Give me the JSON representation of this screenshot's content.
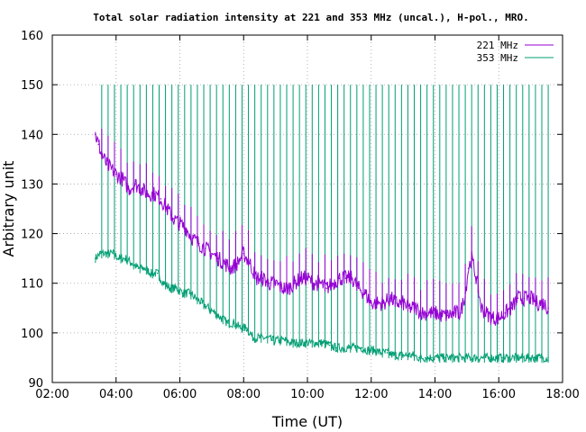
{
  "chart_data": {
    "type": "line",
    "title": "Total solar radiation intensity at 221 and 353 MHz (uncal.), H-pol., MRO.",
    "xlabel": "Time (UT)",
    "ylabel": "Arbitrary unit",
    "xlim": [
      "02:00",
      "18:00"
    ],
    "ylim": [
      90,
      160
    ],
    "x_ticks": [
      "02:00",
      "04:00",
      "06:00",
      "08:00",
      "10:00",
      "12:00",
      "14:00",
      "16:00",
      "18:00"
    ],
    "y_ticks": [
      "90",
      "100",
      "110",
      "120",
      "130",
      "140",
      "150",
      "160"
    ],
    "grid": true,
    "legend_position": "top-right",
    "x_unit": "hours UT (decimal)",
    "series": [
      {
        "name": "221 MHz",
        "color": "#9400d3",
        "x": [
          3.35,
          3.45,
          3.55,
          3.7,
          3.85,
          4.0,
          4.2,
          4.4,
          4.6,
          4.8,
          5.0,
          5.2,
          5.4,
          5.6,
          5.8,
          6.0,
          6.2,
          6.4,
          6.6,
          6.8,
          7.0,
          7.2,
          7.4,
          7.6,
          7.8,
          8.0,
          8.2,
          8.4,
          8.6,
          8.8,
          9.0,
          9.2,
          9.4,
          9.6,
          9.8,
          10.0,
          10.2,
          10.4,
          10.6,
          10.8,
          11.0,
          11.2,
          11.4,
          11.6,
          11.8,
          12.0,
          12.2,
          12.4,
          12.6,
          12.8,
          13.0,
          13.2,
          13.4,
          13.6,
          13.8,
          14.0,
          14.2,
          14.4,
          14.6,
          14.8,
          14.95,
          15.05,
          15.15,
          15.3,
          15.45,
          15.6,
          15.8,
          16.0,
          16.2,
          16.4,
          16.6,
          16.8,
          17.0,
          17.2,
          17.4,
          17.55
        ],
        "y": [
          140,
          138,
          136,
          134,
          133,
          132,
          131,
          129,
          130,
          129,
          128,
          128,
          127,
          125,
          123,
          122,
          121,
          119,
          118,
          117,
          116,
          115,
          114,
          113,
          114,
          116,
          114,
          111,
          111,
          110,
          110,
          109,
          109,
          110,
          111,
          111,
          110,
          110,
          109,
          110,
          111,
          111,
          111,
          109,
          108,
          106,
          106,
          106,
          107,
          106,
          106,
          105,
          105,
          104,
          104,
          104,
          103.5,
          103.5,
          104,
          104,
          108,
          113,
          115,
          111,
          105,
          104,
          103,
          103,
          104,
          105,
          107,
          107,
          107,
          106,
          106,
          105
        ]
      },
      {
        "name": "353 MHz",
        "color": "#009e73",
        "x": [
          3.35,
          3.5,
          3.7,
          3.9,
          4.1,
          4.3,
          4.5,
          4.7,
          4.9,
          5.1,
          5.3,
          5.5,
          5.7,
          5.9,
          6.1,
          6.3,
          6.5,
          6.7,
          6.9,
          7.1,
          7.3,
          7.5,
          7.7,
          7.9,
          8.1,
          8.3,
          8.5,
          8.7,
          8.9,
          9.1,
          9.3,
          9.5,
          9.7,
          9.9,
          10.1,
          10.3,
          10.5,
          10.7,
          10.9,
          11.1,
          11.3,
          11.5,
          11.7,
          11.9,
          12.1,
          12.3,
          12.5,
          12.7,
          12.9,
          13.1,
          13.3,
          13.5,
          13.7,
          13.9,
          14.1,
          14.3,
          14.5,
          14.7,
          14.9,
          15.1,
          15.3,
          15.5,
          15.7,
          15.9,
          16.1,
          16.3,
          16.5,
          16.7,
          16.9,
          17.1,
          17.3,
          17.55
        ],
        "y": [
          115,
          116,
          116,
          116,
          115,
          115,
          114,
          113,
          113,
          112,
          112,
          110,
          109,
          109,
          108,
          108,
          107,
          106,
          105,
          104,
          103,
          102,
          102,
          101,
          101,
          99,
          99,
          99,
          98.5,
          98.5,
          98.5,
          98,
          98,
          98,
          98,
          98,
          98,
          97.5,
          97,
          97,
          97,
          97,
          97,
          96.5,
          96.5,
          96,
          96,
          95.5,
          95.5,
          95.5,
          95.5,
          95,
          95,
          95,
          95,
          95,
          95,
          95,
          95,
          95,
          95,
          95,
          95,
          95,
          95,
          95,
          95,
          95,
          95,
          95,
          95,
          95
        ]
      }
    ]
  }
}
